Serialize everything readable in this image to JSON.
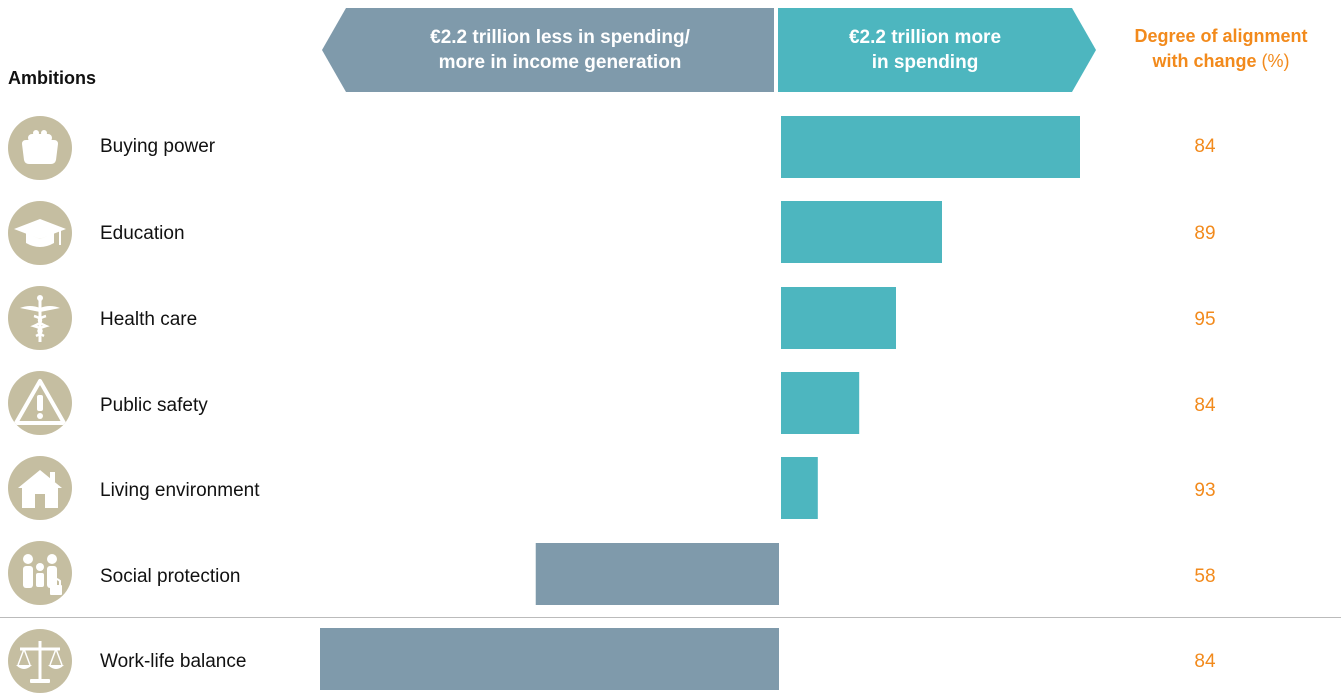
{
  "heading": "Ambitions",
  "header_left": "€2.2 trillion less in spending/\nmore in income generation",
  "header_right": "€2.2 trillion more\nin spending",
  "header_alignment_bold": "Degree of alignment\nwith change",
  "header_alignment_unit": " (%)",
  "colors": {
    "negative": "#7f9aab",
    "positive": "#4db6bf",
    "alignment": "#f28a1c",
    "icon_background": "#c5bea1"
  },
  "rows": [
    {
      "label": "Buying power",
      "icon": "purse-icon",
      "alignment": "84"
    },
    {
      "label": "Education",
      "icon": "graduation-cap-icon",
      "alignment": "89"
    },
    {
      "label": "Health care",
      "icon": "caduceus-icon",
      "alignment": "95"
    },
    {
      "label": "Public safety",
      "icon": "warning-icon",
      "alignment": "84"
    },
    {
      "label": "Living environment",
      "icon": "house-icon",
      "alignment": "93"
    },
    {
      "label": "Social protection",
      "icon": "family-lock-icon",
      "alignment": "58"
    },
    {
      "label": "Work-life balance",
      "icon": "scales-icon",
      "alignment": "84"
    }
  ],
  "chart_data": {
    "type": "bar",
    "orientation": "horizontal",
    "categories": [
      "Buying power",
      "Education",
      "Health care",
      "Public safety",
      "Living environment",
      "Social protection",
      "Work-life balance"
    ],
    "values": [
      0.65,
      0.35,
      0.25,
      0.17,
      0.08,
      -0.53,
      -1.0
    ],
    "xlim": [
      -1.0,
      1.0
    ],
    "xlabel": "",
    "ylabel": "",
    "grid": false
  }
}
